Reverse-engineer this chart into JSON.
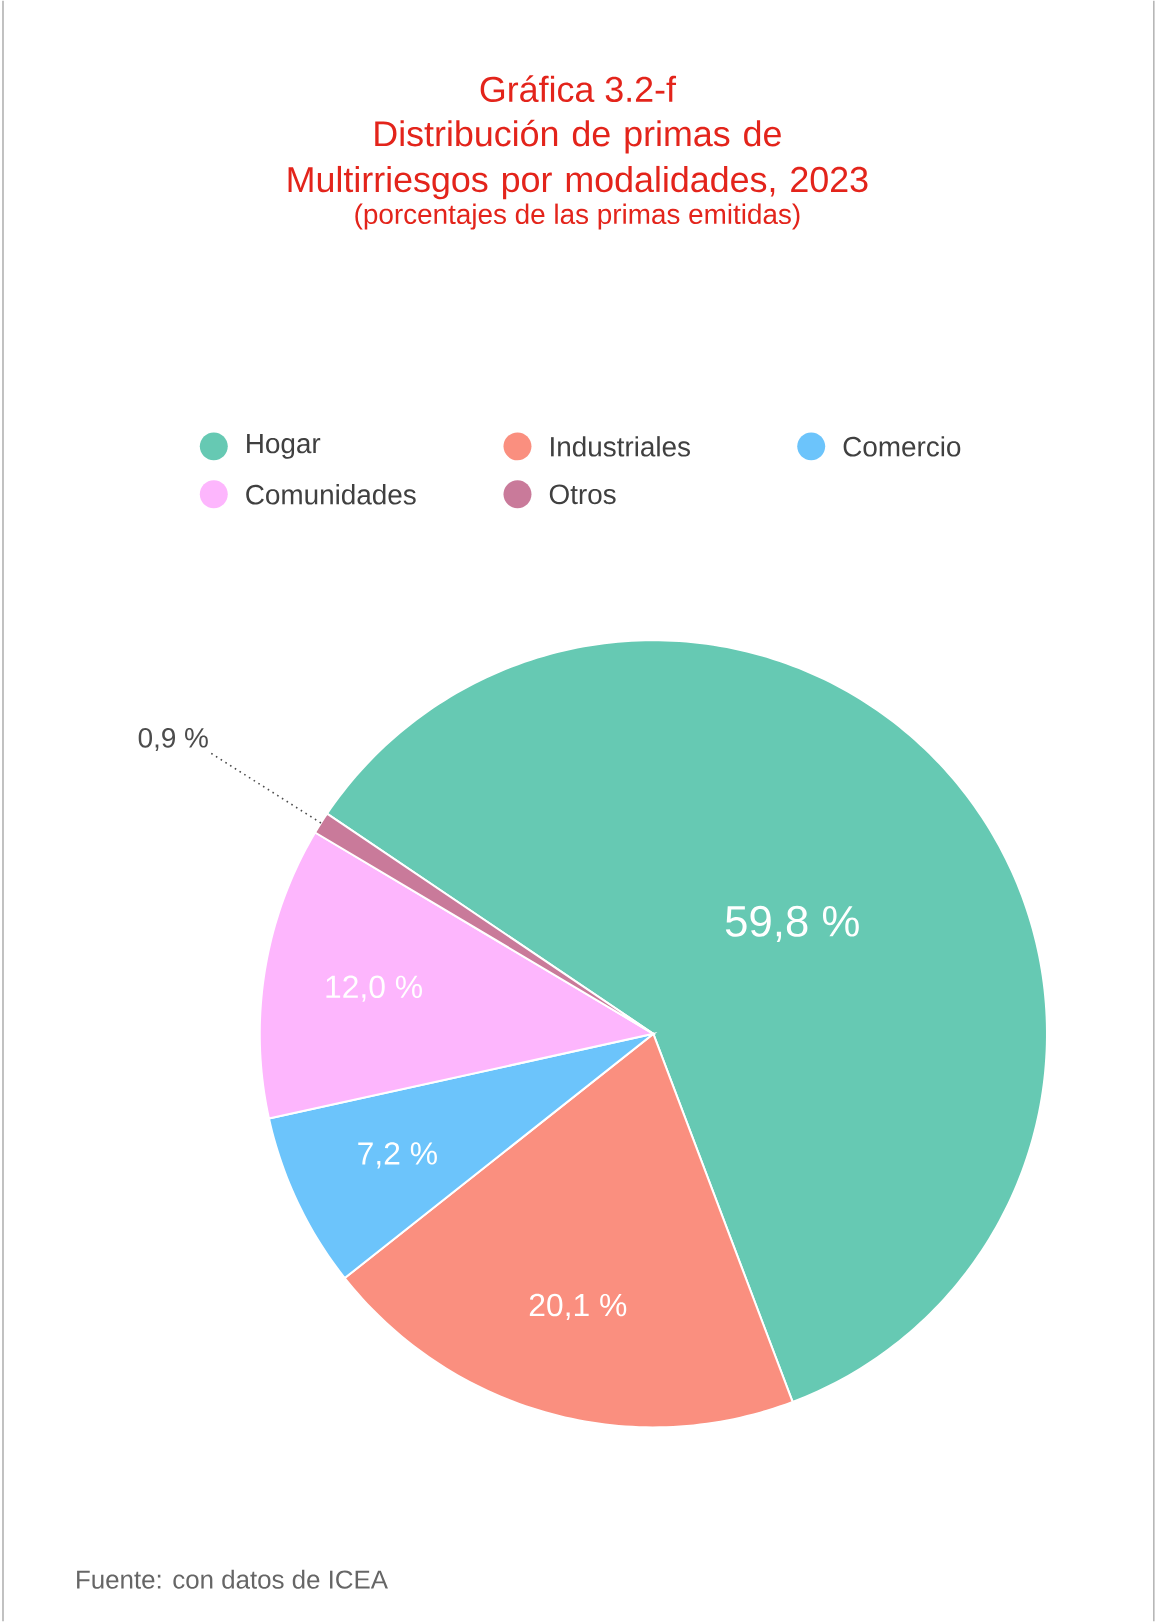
{
  "chart_data": {
    "type": "pie",
    "title": "Gráfica 3.2-f",
    "subtitle": "Distribución de primas de Multirriesgos por modalidades, 2023",
    "categories": [
      "Hogar",
      "Industriales",
      "Comercio",
      "Comunidades",
      "Otros"
    ],
    "values": [
      59.8,
      20.1,
      7.2,
      12.0,
      0.9
    ],
    "value_labels": [
      "59,8 %",
      "20,1 %",
      "7,2 %",
      "12,0 %",
      "0,9 %"
    ],
    "colors": [
      "#66c9b3",
      "#fa8f7f",
      "#6cc4fb",
      "#fdb6fd",
      "#c97a9a"
    ],
    "legend": "top",
    "annotations": [
      "(porcentajes de las primas emitidas)",
      "Fuente: con datos de ICEA"
    ]
  }
}
